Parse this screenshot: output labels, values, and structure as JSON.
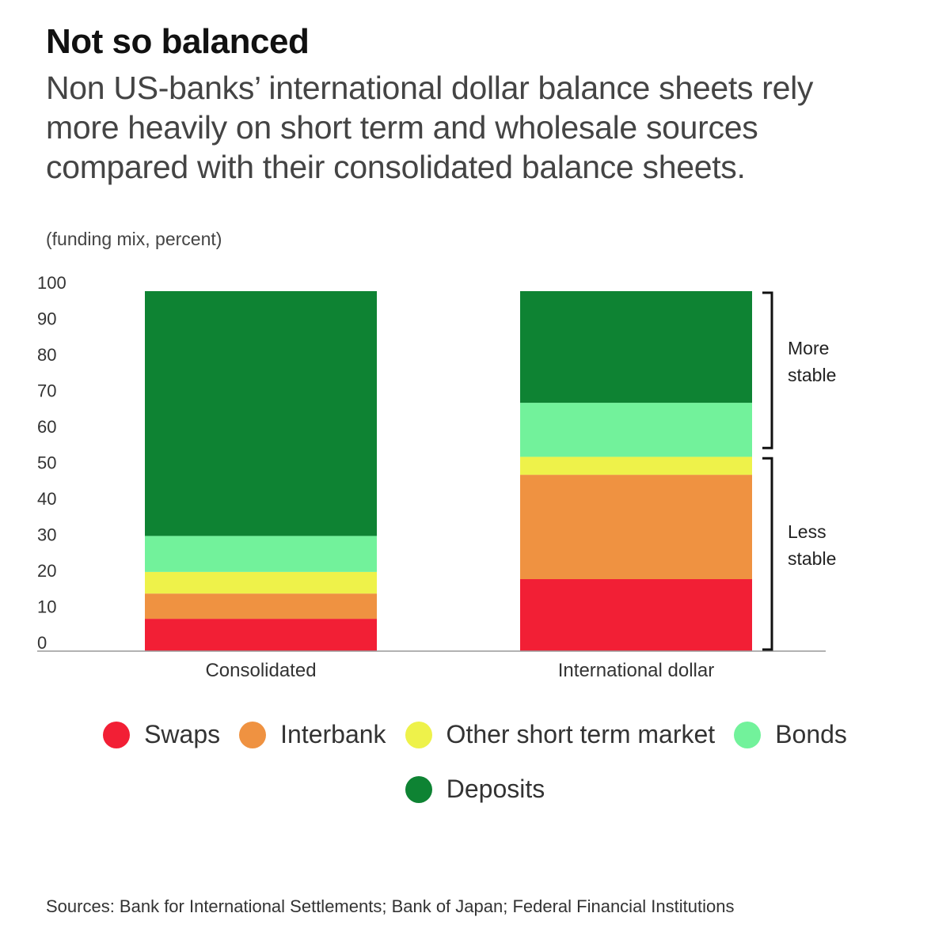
{
  "title": "Not so balanced",
  "subtitle": "Non US-banks’ international dollar balance sheets rely more heavily on short term and wholesale sources compared with their consolidated balance sheets.",
  "unit_note": "(funding mix, percent)",
  "source": "Sources: Bank for International Settlements; Bank of Japan; Federal Financial Institutions",
  "chart_data": {
    "type": "bar",
    "stacked": true,
    "title": "Not so balanced",
    "xlabel": "",
    "ylabel": "funding mix, percent",
    "ylim": [
      0,
      100
    ],
    "yticks": [
      0,
      10,
      20,
      30,
      40,
      50,
      60,
      70,
      80,
      90,
      100
    ],
    "categories": [
      "Consolidated",
      "International dollar"
    ],
    "series": [
      {
        "name": "Swaps",
        "color": "#f21f35",
        "values": [
          9,
          20
        ]
      },
      {
        "name": "Interbank",
        "color": "#ef9241",
        "values": [
          7,
          29
        ]
      },
      {
        "name": "Other short term market",
        "color": "#eef24a",
        "values": [
          6,
          5
        ]
      },
      {
        "name": "Bonds",
        "color": "#72f29b",
        "values": [
          10,
          15
        ]
      },
      {
        "name": "Deposits",
        "color": "#0e8333",
        "values": [
          68,
          31
        ]
      }
    ],
    "annotations": [
      {
        "text_lines": [
          "More",
          "stable"
        ],
        "from": 56,
        "to": 100
      },
      {
        "text_lines": [
          "Less",
          "stable"
        ],
        "from": 0,
        "to": 54
      }
    ]
  }
}
